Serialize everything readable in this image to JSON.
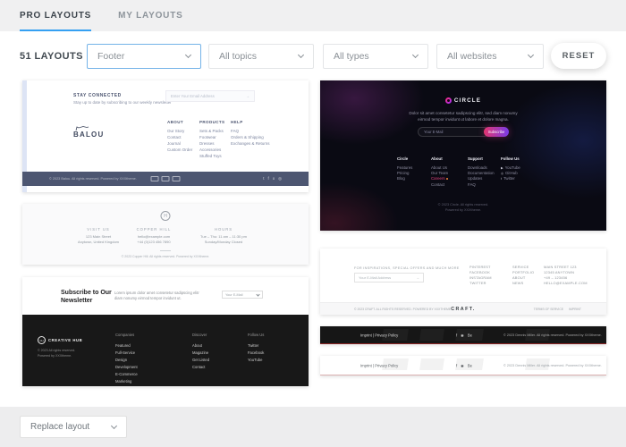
{
  "tabs": {
    "pro": "PRO LAYOUTS",
    "my": "MY LAYOUTS"
  },
  "filter_bar": {
    "count": "51 LAYOUTS",
    "category": "Footer",
    "topics": "All topics",
    "types": "All types",
    "websites": "All websites",
    "reset": "RESET"
  },
  "bottom_bar": {
    "replace": "Replace layout"
  },
  "colors": {
    "accent_blue": "#35a0f2",
    "active_select_border": "#74b3e8",
    "balou_navy": "#4d5671",
    "circle_pink": "#e3356f",
    "accent_red_line": "#8b2525"
  },
  "icons": {
    "arrow_glyph": "→",
    "twitter_glyph": "t",
    "facebook_glyph": "f",
    "x_glyph": "x",
    "instagram_glyph": "◎",
    "dribbble_glyph": "◉",
    "behance_glyph": "Be",
    "youtube_glyph": "▶",
    "github_glyph": "◎",
    "bird_glyph": "t"
  },
  "thumbs": {
    "balou": {
      "heading": "STAY CONNECTED",
      "subtext": "Stay up to date by subscribing to our weekly newsletter",
      "email_placeholder": "Enter Your Email Address",
      "brand": "BALOU",
      "columns": [
        {
          "title": "ABOUT",
          "links": [
            "Our Story",
            "Contact",
            "Journal",
            "Custom Order"
          ]
        },
        {
          "title": "PRODUCTS",
          "links": [
            "Sets & Packs",
            "Footwear",
            "Dresses",
            "Accessories",
            "Stuffed Toys"
          ]
        },
        {
          "title": "HELP",
          "links": [
            "FAQ",
            "Orders & Shipping",
            "Exchanges & Returns"
          ]
        }
      ],
      "copyright": "© 2023 Balou. All rights reserved. Powered by XXXtheme."
    },
    "copperhill": {
      "monogram": "H",
      "columns": [
        {
          "title": "VISIT US",
          "lines": [
            "123 Main Street",
            "Anytown, United Kingdom"
          ]
        },
        {
          "title": "COPPER HILL",
          "lines": [
            "hello@example.com",
            "+44 (0)123 456 7890"
          ]
        },
        {
          "title": "HOURS",
          "lines": [
            "Tue – Thu: 11 am – 11:30 pm",
            "Sunday/Monday Closed"
          ]
        }
      ],
      "copyright": "© 2023 Copper Hill. All rights reserved. Powered by XXXtheme."
    },
    "creativehub": {
      "heading": "Subscribe to Our Newsletter",
      "subtext": "Lorem ipsum dolor amet consetetur sadipscing elitr diam nonumy eirmod tempor invidunt ut.",
      "email_placeholder": "Your E-Mail",
      "brand_initials": "CH",
      "brand": "CREATIVE HUB",
      "copyright_lines": [
        "© 2023 All rights reserved.",
        "Powered by XXXtheme."
      ],
      "columns": [
        {
          "title": "Companies",
          "links": [
            "Featured",
            "Full-Service",
            "Design",
            "Development",
            "E-Commerce",
            "Marketing"
          ]
        },
        {
          "title": "Discover",
          "links": [
            "About",
            "Magazine",
            "Get Listed",
            "Contact"
          ]
        },
        {
          "title": "Follow Us",
          "links": [
            "Twitter",
            "Facebook",
            "YouTube"
          ]
        }
      ]
    },
    "circle": {
      "brand": "CIRCLE",
      "desc_line1": "Dolor sit amet consetetur sadipscing elitr, sed diam nonumy",
      "desc_line2": "eirmod tempor invidunt ut labore et dolore magna.",
      "email_placeholder": "Your E-Mail",
      "subscribe": "Subscribe",
      "columns": [
        {
          "title": "Circle",
          "links": [
            "Features",
            "Pricing",
            "Blog"
          ]
        },
        {
          "title": "About",
          "links": [
            "About Us",
            "Our Team",
            "Careers",
            "Contact"
          ]
        },
        {
          "title": "Support",
          "links": [
            "Downloads",
            "Documentation",
            "Updates",
            "FAQ"
          ]
        }
      ],
      "follow": {
        "title": "Follow Us",
        "links": [
          "YouTube",
          "GitHub",
          "Twitter"
        ]
      },
      "copyright_lines": [
        "© 2023 Circle. All rights reserved.",
        "Powered by XXXtheme."
      ]
    },
    "craft": {
      "tagline": "FOR INSPIRATIONS, SPECIAL OFFERS AND MUCH MORE",
      "email_placeholder": "Your E-Mail Address",
      "columns": [
        {
          "links": [
            "PINTEREST",
            "FACEBOOK",
            "INSTAGRAM",
            "TWITTER"
          ]
        },
        {
          "links": [
            "SERVICE",
            "PORTFOLIO",
            "ABOUT",
            "NEWS"
          ]
        },
        {
          "links": [
            "MAIN STREET 123",
            "12345 ANYTOWN",
            "+49 – 123456",
            "HELLO@EXAMPLE.COM"
          ]
        }
      ],
      "copyright": "© 2023 CRAFT. ALL RIGHTS RESERVED. POWERED BY XXXTHEME.",
      "brand": "CRAFT.",
      "legal_links": [
        "TERMS OF SERVICE",
        "IMPRINT"
      ]
    },
    "strip": {
      "left_links": "Imprint  |  Privacy Policy",
      "copyright": "© 2023 Dennis Miller. All rights reserved. Powered by XXXtheme."
    }
  }
}
